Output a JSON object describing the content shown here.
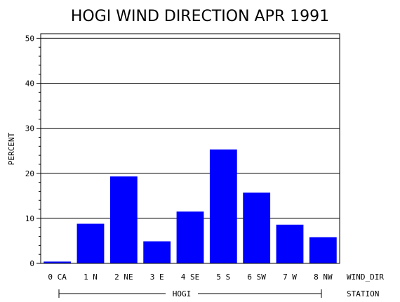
{
  "chart_data": {
    "type": "bar",
    "title": "HOGI WIND DIRECTION APR 1991",
    "ylabel": "PERCENT",
    "xlabel": "WIND_DIR",
    "group_axis_label": "STATION",
    "group_label": "HOGI",
    "categories": [
      "0 CA",
      "1 N",
      "2 NE",
      "3 E",
      "4 SE",
      "5 S",
      "6 SW",
      "7 W",
      "8 NW"
    ],
    "values": [
      0.4,
      8.8,
      19.3,
      4.9,
      11.5,
      25.3,
      15.7,
      8.6,
      5.8
    ],
    "ylim": [
      0,
      51
    ],
    "yticks": [
      0,
      10,
      20,
      30,
      40,
      50
    ],
    "grid": true,
    "bar_color": "#0000ff"
  }
}
